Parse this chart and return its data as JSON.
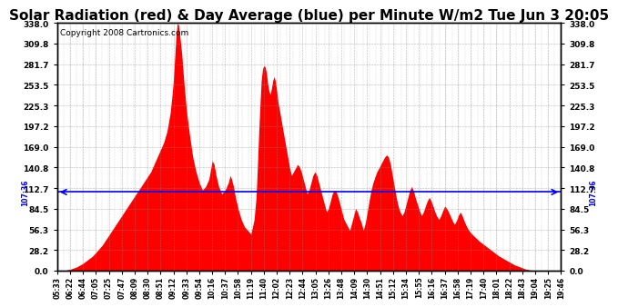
{
  "title": "Solar Radiation (red) & Day Average (blue) per Minute W/m2 Tue Jun 3 20:05",
  "copyright": "Copyright 2008 Cartronics.com",
  "ymin": 0.0,
  "ymax": 338.0,
  "yticks": [
    0.0,
    28.2,
    56.3,
    84.5,
    112.7,
    140.8,
    169.0,
    197.2,
    225.3,
    253.5,
    281.7,
    309.8,
    338.0
  ],
  "day_average": 107.36,
  "avg_label": "107:36",
  "fill_color": "red",
  "avg_line_color": "blue",
  "background_color": "white",
  "grid_color": "#888888",
  "title_fontsize": 11,
  "copyright_fontsize": 6.5,
  "xtick_labels": [
    "05:33",
    "06:22",
    "06:44",
    "07:05",
    "07:25",
    "07:47",
    "08:09",
    "08:30",
    "08:51",
    "09:12",
    "09:33",
    "09:54",
    "10:16",
    "10:37",
    "10:58",
    "11:19",
    "11:40",
    "12:02",
    "12:23",
    "12:44",
    "13:05",
    "13:26",
    "13:48",
    "14:09",
    "14:30",
    "14:51",
    "15:12",
    "15:34",
    "15:55",
    "16:16",
    "16:37",
    "16:58",
    "17:19",
    "17:40",
    "18:01",
    "18:22",
    "18:43",
    "19:04",
    "19:25",
    "19:46"
  ],
  "profile_points": [
    [
      0,
      0
    ],
    [
      10,
      0
    ],
    [
      20,
      2
    ],
    [
      30,
      5
    ],
    [
      40,
      10
    ],
    [
      55,
      20
    ],
    [
      70,
      35
    ],
    [
      85,
      55
    ],
    [
      100,
      75
    ],
    [
      115,
      95
    ],
    [
      130,
      115
    ],
    [
      145,
      135
    ],
    [
      155,
      155
    ],
    [
      165,
      175
    ],
    [
      170,
      190
    ],
    [
      175,
      215
    ],
    [
      178,
      240
    ],
    [
      180,
      260
    ],
    [
      182,
      290
    ],
    [
      184,
      320
    ],
    [
      186,
      338
    ],
    [
      188,
      335
    ],
    [
      190,
      320
    ],
    [
      193,
      295
    ],
    [
      196,
      260
    ],
    [
      200,
      220
    ],
    [
      205,
      185
    ],
    [
      210,
      155
    ],
    [
      215,
      135
    ],
    [
      220,
      120
    ],
    [
      225,
      110
    ],
    [
      230,
      115
    ],
    [
      235,
      125
    ],
    [
      238,
      140
    ],
    [
      240,
      150
    ],
    [
      243,
      145
    ],
    [
      246,
      130
    ],
    [
      250,
      115
    ],
    [
      255,
      105
    ],
    [
      260,
      110
    ],
    [
      265,
      120
    ],
    [
      268,
      130
    ],
    [
      270,
      125
    ],
    [
      273,
      115
    ],
    [
      276,
      100
    ],
    [
      280,
      85
    ],
    [
      285,
      70
    ],
    [
      290,
      60
    ],
    [
      295,
      55
    ],
    [
      300,
      50
    ],
    [
      305,
      70
    ],
    [
      308,
      100
    ],
    [
      310,
      140
    ],
    [
      312,
      185
    ],
    [
      314,
      225
    ],
    [
      316,
      260
    ],
    [
      318,
      275
    ],
    [
      320,
      280
    ],
    [
      322,
      278
    ],
    [
      324,
      270
    ],
    [
      326,
      255
    ],
    [
      328,
      245
    ],
    [
      330,
      240
    ],
    [
      332,
      250
    ],
    [
      334,
      260
    ],
    [
      336,
      265
    ],
    [
      338,
      258
    ],
    [
      340,
      245
    ],
    [
      342,
      230
    ],
    [
      345,
      215
    ],
    [
      348,
      200
    ],
    [
      351,
      185
    ],
    [
      354,
      170
    ],
    [
      357,
      155
    ],
    [
      360,
      140
    ],
    [
      363,
      130
    ],
    [
      366,
      135
    ],
    [
      369,
      140
    ],
    [
      372,
      145
    ],
    [
      375,
      142
    ],
    [
      378,
      135
    ],
    [
      381,
      125
    ],
    [
      384,
      115
    ],
    [
      387,
      105
    ],
    [
      390,
      110
    ],
    [
      393,
      120
    ],
    [
      396,
      130
    ],
    [
      399,
      135
    ],
    [
      402,
      130
    ],
    [
      405,
      120
    ],
    [
      408,
      110
    ],
    [
      411,
      100
    ],
    [
      414,
      90
    ],
    [
      417,
      80
    ],
    [
      420,
      85
    ],
    [
      423,
      95
    ],
    [
      426,
      105
    ],
    [
      429,
      110
    ],
    [
      432,
      108
    ],
    [
      435,
      100
    ],
    [
      438,
      90
    ],
    [
      441,
      80
    ],
    [
      444,
      70
    ],
    [
      447,
      65
    ],
    [
      450,
      60
    ],
    [
      453,
      55
    ],
    [
      456,
      65
    ],
    [
      459,
      75
    ],
    [
      462,
      85
    ],
    [
      465,
      80
    ],
    [
      468,
      72
    ],
    [
      471,
      65
    ],
    [
      474,
      55
    ],
    [
      477,
      65
    ],
    [
      480,
      80
    ],
    [
      483,
      95
    ],
    [
      486,
      110
    ],
    [
      489,
      120
    ],
    [
      492,
      128
    ],
    [
      495,
      135
    ],
    [
      498,
      140
    ],
    [
      501,
      145
    ],
    [
      504,
      150
    ],
    [
      507,
      155
    ],
    [
      510,
      158
    ],
    [
      513,
      155
    ],
    [
      516,
      145
    ],
    [
      519,
      130
    ],
    [
      522,
      115
    ],
    [
      525,
      100
    ],
    [
      528,
      88
    ],
    [
      531,
      80
    ],
    [
      534,
      75
    ],
    [
      537,
      80
    ],
    [
      540,
      90
    ],
    [
      543,
      100
    ],
    [
      546,
      110
    ],
    [
      549,
      115
    ],
    [
      552,
      108
    ],
    [
      555,
      98
    ],
    [
      558,
      90
    ],
    [
      561,
      82
    ],
    [
      564,
      75
    ],
    [
      567,
      80
    ],
    [
      570,
      88
    ],
    [
      573,
      95
    ],
    [
      576,
      100
    ],
    [
      579,
      95
    ],
    [
      582,
      88
    ],
    [
      585,
      80
    ],
    [
      588,
      74
    ],
    [
      591,
      70
    ],
    [
      594,
      75
    ],
    [
      597,
      82
    ],
    [
      600,
      88
    ],
    [
      603,
      85
    ],
    [
      606,
      80
    ],
    [
      609,
      74
    ],
    [
      612,
      68
    ],
    [
      615,
      63
    ],
    [
      618,
      68
    ],
    [
      621,
      75
    ],
    [
      624,
      80
    ],
    [
      627,
      75
    ],
    [
      630,
      68
    ],
    [
      633,
      62
    ],
    [
      636,
      57
    ],
    [
      639,
      53
    ],
    [
      642,
      50
    ],
    [
      648,
      45
    ],
    [
      654,
      40
    ],
    [
      660,
      36
    ],
    [
      666,
      32
    ],
    [
      672,
      28
    ],
    [
      678,
      24
    ],
    [
      684,
      20
    ],
    [
      690,
      17
    ],
    [
      696,
      14
    ],
    [
      702,
      11
    ],
    [
      708,
      8
    ],
    [
      714,
      6
    ],
    [
      720,
      4
    ],
    [
      726,
      2
    ],
    [
      732,
      1
    ],
    [
      740,
      0
    ],
    [
      780,
      0
    ]
  ]
}
